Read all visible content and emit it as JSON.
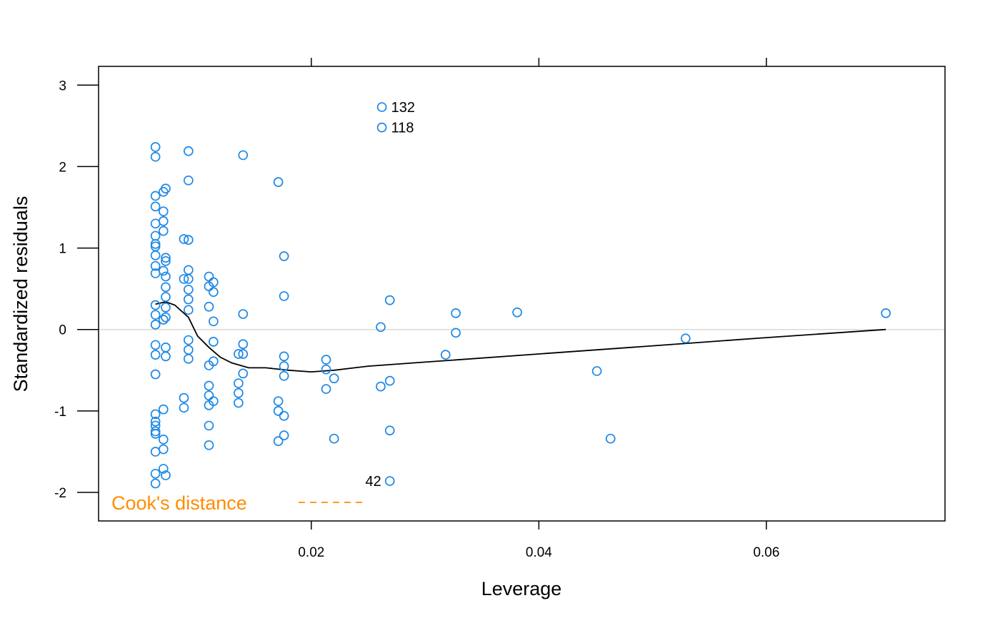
{
  "chart_data": {
    "type": "scatter",
    "title": "",
    "xlabel": "Leverage",
    "ylabel": "Standardized residuals",
    "xlim": [
      0.0013,
      0.0757
    ],
    "ylim": [
      -2.35,
      3.23
    ],
    "x_ticks": [
      0.02,
      0.04,
      0.06
    ],
    "x_tick_labels": [
      "0.02",
      "0.04",
      "0.06"
    ],
    "y_ticks": [
      -2,
      -1,
      0,
      1,
      2,
      3
    ],
    "y_tick_labels": [
      "-2",
      "-1",
      "0",
      "1",
      "2",
      "3"
    ],
    "grid": false,
    "reference_line_y": 0,
    "colors": {
      "points": "#1e88e5",
      "smooth": "#000000",
      "reference": "#d9d9d9",
      "cooks": "#ff8c00"
    },
    "legend": {
      "label": "Cook's distance",
      "position": "bottom-left",
      "style": "dashed",
      "color": "#ff8c00"
    },
    "points": [
      {
        "x": 0.0063,
        "y": 2.24
      },
      {
        "x": 0.0063,
        "y": 2.12
      },
      {
        "x": 0.0063,
        "y": 1.64
      },
      {
        "x": 0.0063,
        "y": 1.51
      },
      {
        "x": 0.0063,
        "y": 1.3
      },
      {
        "x": 0.0063,
        "y": 1.15
      },
      {
        "x": 0.0063,
        "y": 1.05
      },
      {
        "x": 0.0063,
        "y": 1.02
      },
      {
        "x": 0.0063,
        "y": 0.91
      },
      {
        "x": 0.0063,
        "y": 0.78
      },
      {
        "x": 0.0063,
        "y": 0.69
      },
      {
        "x": 0.0063,
        "y": 0.3
      },
      {
        "x": 0.0063,
        "y": 0.18
      },
      {
        "x": 0.0063,
        "y": 0.06
      },
      {
        "x": 0.0063,
        "y": -0.19
      },
      {
        "x": 0.0063,
        "y": -0.31
      },
      {
        "x": 0.0063,
        "y": -0.55
      },
      {
        "x": 0.0063,
        "y": -1.04
      },
      {
        "x": 0.0063,
        "y": -1.13
      },
      {
        "x": 0.0063,
        "y": -1.18
      },
      {
        "x": 0.0063,
        "y": -1.25
      },
      {
        "x": 0.0063,
        "y": -1.28
      },
      {
        "x": 0.0063,
        "y": -1.5
      },
      {
        "x": 0.0063,
        "y": -1.77
      },
      {
        "x": 0.0063,
        "y": -1.89
      },
      {
        "x": 0.007,
        "y": 1.69
      },
      {
        "x": 0.007,
        "y": 1.45
      },
      {
        "x": 0.007,
        "y": 1.33
      },
      {
        "x": 0.007,
        "y": 1.21
      },
      {
        "x": 0.007,
        "y": 0.72
      },
      {
        "x": 0.007,
        "y": 0.12
      },
      {
        "x": 0.007,
        "y": -0.98
      },
      {
        "x": 0.007,
        "y": -1.35
      },
      {
        "x": 0.007,
        "y": -1.47
      },
      {
        "x": 0.007,
        "y": -1.71
      },
      {
        "x": 0.0072,
        "y": 1.73
      },
      {
        "x": 0.0072,
        "y": 0.88
      },
      {
        "x": 0.0072,
        "y": 0.84
      },
      {
        "x": 0.0072,
        "y": 0.65
      },
      {
        "x": 0.0072,
        "y": 0.52
      },
      {
        "x": 0.0072,
        "y": 0.4
      },
      {
        "x": 0.0072,
        "y": 0.27
      },
      {
        "x": 0.0072,
        "y": 0.15
      },
      {
        "x": 0.0072,
        "y": -0.22
      },
      {
        "x": 0.0072,
        "y": -0.33
      },
      {
        "x": 0.0072,
        "y": -1.79
      },
      {
        "x": 0.0088,
        "y": 1.11
      },
      {
        "x": 0.0088,
        "y": 0.62
      },
      {
        "x": 0.0088,
        "y": -0.84
      },
      {
        "x": 0.0088,
        "y": -0.96
      },
      {
        "x": 0.0092,
        "y": 2.19
      },
      {
        "x": 0.0092,
        "y": 1.83
      },
      {
        "x": 0.0092,
        "y": 1.1
      },
      {
        "x": 0.0092,
        "y": 0.73
      },
      {
        "x": 0.0092,
        "y": 0.62
      },
      {
        "x": 0.0092,
        "y": 0.49
      },
      {
        "x": 0.0092,
        "y": 0.37
      },
      {
        "x": 0.0092,
        "y": 0.24
      },
      {
        "x": 0.0092,
        "y": -0.13
      },
      {
        "x": 0.0092,
        "y": -0.25
      },
      {
        "x": 0.0092,
        "y": -0.36
      },
      {
        "x": 0.011,
        "y": 0.65
      },
      {
        "x": 0.011,
        "y": 0.53
      },
      {
        "x": 0.011,
        "y": 0.28
      },
      {
        "x": 0.011,
        "y": -0.44
      },
      {
        "x": 0.011,
        "y": -0.69
      },
      {
        "x": 0.011,
        "y": -0.81
      },
      {
        "x": 0.011,
        "y": -0.93
      },
      {
        "x": 0.011,
        "y": -1.18
      },
      {
        "x": 0.011,
        "y": -1.42
      },
      {
        "x": 0.0114,
        "y": 0.58
      },
      {
        "x": 0.0114,
        "y": 0.46
      },
      {
        "x": 0.0114,
        "y": 0.1
      },
      {
        "x": 0.0114,
        "y": -0.15
      },
      {
        "x": 0.0114,
        "y": -0.39
      },
      {
        "x": 0.0114,
        "y": -0.88
      },
      {
        "x": 0.0136,
        "y": -0.3
      },
      {
        "x": 0.0136,
        "y": -0.66
      },
      {
        "x": 0.0136,
        "y": -0.78
      },
      {
        "x": 0.0136,
        "y": -0.9
      },
      {
        "x": 0.014,
        "y": 2.14
      },
      {
        "x": 0.014,
        "y": 0.19
      },
      {
        "x": 0.014,
        "y": -0.18
      },
      {
        "x": 0.014,
        "y": -0.3
      },
      {
        "x": 0.014,
        "y": -0.54
      },
      {
        "x": 0.0171,
        "y": 1.81
      },
      {
        "x": 0.0171,
        "y": -0.88
      },
      {
        "x": 0.0171,
        "y": -1.0
      },
      {
        "x": 0.0171,
        "y": -1.37
      },
      {
        "x": 0.0176,
        "y": 0.9
      },
      {
        "x": 0.0176,
        "y": 0.41
      },
      {
        "x": 0.0176,
        "y": -0.33
      },
      {
        "x": 0.0176,
        "y": -0.45
      },
      {
        "x": 0.0176,
        "y": -0.57
      },
      {
        "x": 0.0176,
        "y": -1.06
      },
      {
        "x": 0.0176,
        "y": -1.3
      },
      {
        "x": 0.0213,
        "y": -0.37
      },
      {
        "x": 0.0213,
        "y": -0.49
      },
      {
        "x": 0.0213,
        "y": -0.73
      },
      {
        "x": 0.022,
        "y": -0.6
      },
      {
        "x": 0.022,
        "y": -1.34
      },
      {
        "x": 0.0261,
        "y": 0.03
      },
      {
        "x": 0.0261,
        "y": -0.7
      },
      {
        "x": 0.0262,
        "y": 2.73,
        "label": "132"
      },
      {
        "x": 0.0262,
        "y": 2.48,
        "label": "118"
      },
      {
        "x": 0.0269,
        "y": 0.36
      },
      {
        "x": 0.0269,
        "y": -0.63
      },
      {
        "x": 0.0269,
        "y": -1.24
      },
      {
        "x": 0.0269,
        "y": -1.86,
        "label": "42"
      },
      {
        "x": 0.0318,
        "y": -0.31
      },
      {
        "x": 0.0327,
        "y": 0.2
      },
      {
        "x": 0.0327,
        "y": -0.04
      },
      {
        "x": 0.0381,
        "y": 0.21
      },
      {
        "x": 0.0451,
        "y": -0.51
      },
      {
        "x": 0.0463,
        "y": -1.34
      },
      {
        "x": 0.0529,
        "y": -0.11
      },
      {
        "x": 0.0705,
        "y": 0.2
      }
    ],
    "smooth_line": {
      "x": [
        0.0063,
        0.0072,
        0.008,
        0.0092,
        0.01,
        0.011,
        0.012,
        0.013,
        0.0145,
        0.016,
        0.018,
        0.02,
        0.022,
        0.025,
        0.03,
        0.04,
        0.05,
        0.06,
        0.0705
      ],
      "y": [
        0.31,
        0.34,
        0.3,
        0.15,
        -0.08,
        -0.22,
        -0.34,
        -0.41,
        -0.47,
        -0.47,
        -0.5,
        -0.52,
        -0.5,
        -0.45,
        -0.4,
        -0.3,
        -0.2,
        -0.1,
        0.0
      ]
    },
    "cooks_distance_line": {
      "x": [
        0.0,
        0.025
      ],
      "y": [
        -2.11,
        -2.11
      ]
    }
  }
}
